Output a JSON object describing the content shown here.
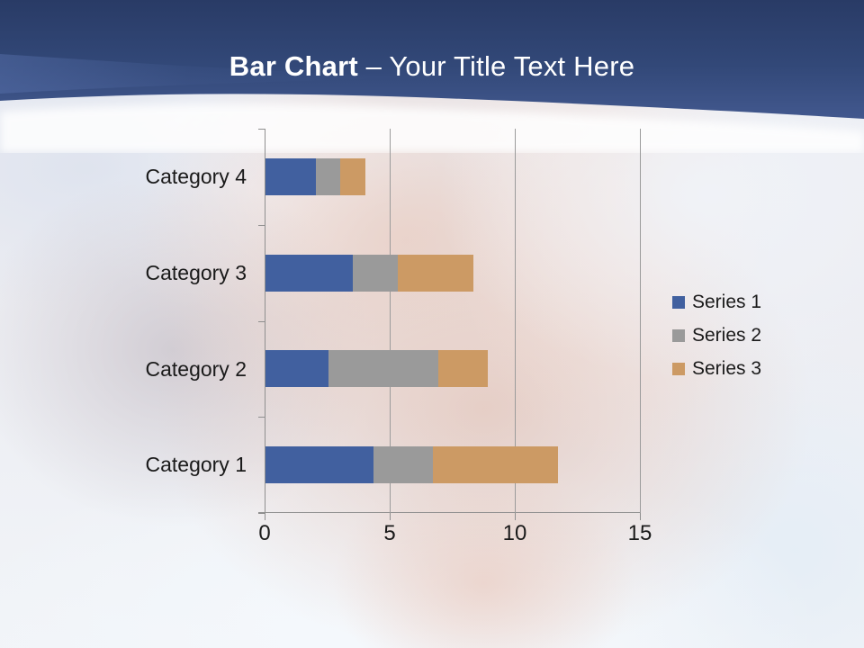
{
  "header": {
    "title_bold": "Bar Chart ",
    "title_regular": "– Your Title Text Here",
    "band_top_color": "#293b66",
    "band_mid_color": "#324878",
    "band_bottom_color": "#42588e",
    "title_color": "#ffffff"
  },
  "chart_data": {
    "type": "bar",
    "orientation": "horizontal",
    "stacked": true,
    "title": "",
    "xlabel": "",
    "ylabel": "",
    "categories": [
      "Category 1",
      "Category 2",
      "Category 3",
      "Category 4"
    ],
    "series": [
      {
        "name": "Series 1",
        "color": "#41609f",
        "values": [
          4.3,
          2.5,
          3.5,
          2.0
        ]
      },
      {
        "name": "Series 2",
        "color": "#9a9a9a",
        "values": [
          2.4,
          4.4,
          1.8,
          1.0
        ]
      },
      {
        "name": "Series 3",
        "color": "#cc9a64",
        "values": [
          5.0,
          2.0,
          3.0,
          1.0
        ]
      }
    ],
    "x_ticks": [
      "0",
      "5",
      "10",
      "15"
    ],
    "xlim": [
      0,
      15
    ],
    "grid": true,
    "legend_position": "right",
    "axis_color": "#8f8f8f",
    "grid_color": "#9b9b9b",
    "label_color": "#1a1a1a",
    "category_display_order_top_to_bottom": [
      "Category 4",
      "Category 3",
      "Category 2",
      "Category 1"
    ]
  }
}
